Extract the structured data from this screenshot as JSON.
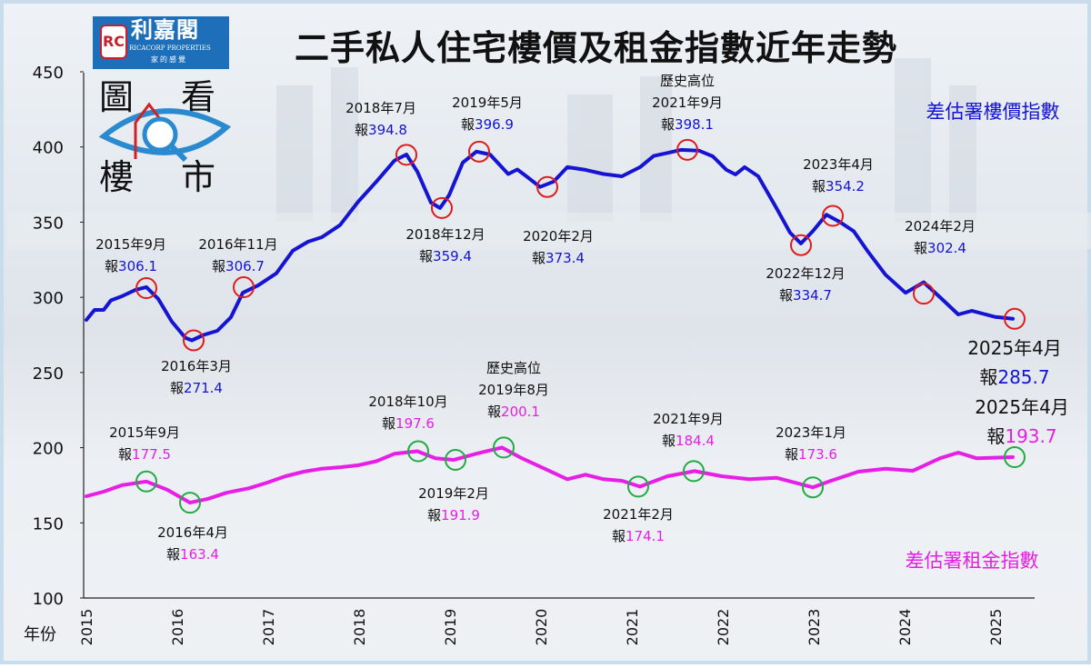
{
  "logo": {
    "name": "利嘉閣",
    "english": "RICACORP PROPERTIES",
    "slogan": "家的感覺",
    "mark": "RC",
    "badge_chars": [
      "圖",
      "看",
      "樓",
      "市"
    ]
  },
  "title": "二手私人住宅樓價及租金指數近年走勢",
  "colors": {
    "price": "#1414d2",
    "rent": "#e61ee6",
    "price_marker": "#e01b1b",
    "rent_marker": "#22aa44",
    "text": "#111111"
  },
  "chart_data": {
    "type": "line",
    "title": "二手私人住宅樓價及租金指數近年走勢",
    "xlabel": "年份",
    "ylabel": "",
    "xlim": [
      2015,
      2025.45
    ],
    "ylim": [
      100,
      450
    ],
    "x_ticks": [
      "2015",
      "2016",
      "2017",
      "2018",
      "2019",
      "2020",
      "2021",
      "2022",
      "2023",
      "2024",
      "2025"
    ],
    "y_ticks": [
      100,
      150,
      200,
      250,
      300,
      350,
      400,
      450
    ],
    "grid": false,
    "series": [
      {
        "name": "差估署樓價指數",
        "color": "#1414d2",
        "points": [
          [
            2015.0,
            285
          ],
          [
            2015.09,
            291.6
          ],
          [
            2015.19,
            291.6
          ],
          [
            2015.27,
            298
          ],
          [
            2015.39,
            300.7
          ],
          [
            2015.54,
            305
          ],
          [
            2015.66,
            306.8
          ],
          [
            2015.79,
            299
          ],
          [
            2015.94,
            283.8
          ],
          [
            2016.09,
            273
          ],
          [
            2016.16,
            271.4
          ],
          [
            2016.29,
            275
          ],
          [
            2016.44,
            277.7
          ],
          [
            2016.59,
            286.8
          ],
          [
            2016.72,
            303
          ],
          [
            2016.89,
            308
          ],
          [
            2017.09,
            316
          ],
          [
            2017.27,
            331
          ],
          [
            2017.44,
            337
          ],
          [
            2017.59,
            340
          ],
          [
            2017.79,
            348
          ],
          [
            2017.99,
            363.6
          ],
          [
            2018.19,
            377
          ],
          [
            2018.39,
            391
          ],
          [
            2018.52,
            395
          ],
          [
            2018.64,
            383.6
          ],
          [
            2018.79,
            363
          ],
          [
            2018.89,
            359.4
          ],
          [
            2018.99,
            368
          ],
          [
            2019.14,
            389.6
          ],
          [
            2019.29,
            396.9
          ],
          [
            2019.44,
            395
          ],
          [
            2019.64,
            382
          ],
          [
            2019.74,
            385
          ],
          [
            2019.84,
            380.5
          ],
          [
            2019.99,
            373.4
          ],
          [
            2020.14,
            377
          ],
          [
            2020.29,
            386.6
          ],
          [
            2020.49,
            384.8
          ],
          [
            2020.69,
            382
          ],
          [
            2020.89,
            380.5
          ],
          [
            2021.09,
            386.6
          ],
          [
            2021.24,
            394
          ],
          [
            2021.39,
            396
          ],
          [
            2021.54,
            398.1
          ],
          [
            2021.74,
            397.5
          ],
          [
            2021.89,
            393.8
          ],
          [
            2022.04,
            384.8
          ],
          [
            2022.14,
            381.7
          ],
          [
            2022.24,
            386.6
          ],
          [
            2022.39,
            380.5
          ],
          [
            2022.59,
            359.4
          ],
          [
            2022.74,
            343
          ],
          [
            2022.86,
            335.8
          ],
          [
            2022.99,
            344
          ],
          [
            2023.14,
            355
          ],
          [
            2023.29,
            350
          ],
          [
            2023.44,
            344
          ],
          [
            2023.59,
            331
          ],
          [
            2023.79,
            315
          ],
          [
            2024.01,
            303
          ],
          [
            2024.21,
            310
          ],
          [
            2024.39,
            300
          ],
          [
            2024.59,
            288.6
          ],
          [
            2024.74,
            291
          ],
          [
            2024.99,
            287
          ],
          [
            2025.19,
            285.7
          ]
        ],
        "annotations": [
          {
            "x": 2015.66,
            "value": 306.1,
            "lines": [
              "2015年9月"
            ],
            "prefix": "報",
            "text": "306.1"
          },
          {
            "x": 2016.18,
            "value": 271.4,
            "lines": [
              "2016年3月"
            ],
            "prefix": "報",
            "text": "271.4"
          },
          {
            "x": 2016.73,
            "value": 306.7,
            "lines": [
              "2016年11月"
            ],
            "prefix": "報",
            "text": "306.7"
          },
          {
            "x": 2018.52,
            "value": 394.8,
            "lines": [
              "2018年7月"
            ],
            "prefix": "報",
            "text": "394.8"
          },
          {
            "x": 2018.91,
            "value": 359.4,
            "lines": [
              "2018年12月"
            ],
            "prefix": "報",
            "text": "359.4"
          },
          {
            "x": 2019.32,
            "value": 396.9,
            "lines": [
              "2019年5月"
            ],
            "prefix": "報",
            "text": "396.9"
          },
          {
            "x": 2020.07,
            "value": 373.4,
            "lines": [
              "2020年2月"
            ],
            "prefix": "報",
            "text": "373.4"
          },
          {
            "x": 2021.61,
            "value": 398.1,
            "lines": [
              "歷史高位",
              "2021年9月"
            ],
            "prefix": "報",
            "text": "398.1"
          },
          {
            "x": 2022.86,
            "value": 334.7,
            "lines": [
              "2022年12月"
            ],
            "prefix": "報",
            "text": "334.7"
          },
          {
            "x": 2023.21,
            "value": 354.2,
            "lines": [
              "2023年4月"
            ],
            "prefix": "報",
            "text": "354.2"
          },
          {
            "x": 2024.21,
            "value": 302.4,
            "lines": [
              "2024年2月"
            ],
            "prefix": "報",
            "text": "302.4"
          },
          {
            "x": 2025.21,
            "value": 285.7,
            "lines": [
              "2025年4月"
            ],
            "prefix": "報",
            "text": "285.7"
          }
        ]
      },
      {
        "name": "差估署租金指數",
        "color": "#e61ee6",
        "points": [
          [
            2015.0,
            167.7
          ],
          [
            2015.19,
            170.7
          ],
          [
            2015.39,
            175
          ],
          [
            2015.66,
            177.5
          ],
          [
            2015.89,
            172
          ],
          [
            2016.14,
            163.4
          ],
          [
            2016.34,
            166
          ],
          [
            2016.54,
            170
          ],
          [
            2016.79,
            173
          ],
          [
            2016.99,
            176.8
          ],
          [
            2017.19,
            181
          ],
          [
            2017.39,
            184
          ],
          [
            2017.59,
            186
          ],
          [
            2017.79,
            187
          ],
          [
            2017.99,
            188.3
          ],
          [
            2018.19,
            191
          ],
          [
            2018.39,
            196
          ],
          [
            2018.64,
            197.6
          ],
          [
            2018.84,
            193
          ],
          [
            2019.04,
            191.9
          ],
          [
            2019.29,
            196
          ],
          [
            2019.57,
            200.1
          ],
          [
            2019.79,
            193
          ],
          [
            2020.04,
            186
          ],
          [
            2020.29,
            179
          ],
          [
            2020.49,
            182
          ],
          [
            2020.69,
            179
          ],
          [
            2020.89,
            178
          ],
          [
            2021.09,
            174.1
          ],
          [
            2021.39,
            181
          ],
          [
            2021.69,
            184.4
          ],
          [
            2021.99,
            181
          ],
          [
            2022.29,
            179
          ],
          [
            2022.59,
            180
          ],
          [
            2022.99,
            173.6
          ],
          [
            2023.19,
            178
          ],
          [
            2023.49,
            184
          ],
          [
            2023.79,
            186
          ],
          [
            2024.09,
            184.6
          ],
          [
            2024.39,
            193
          ],
          [
            2024.59,
            196.7
          ],
          [
            2024.79,
            193
          ],
          [
            2025.19,
            193.7
          ]
        ],
        "annotations": [
          {
            "x": 2015.66,
            "value": 177.5,
            "lines": [
              "2015年9月"
            ],
            "prefix": "報",
            "text": "177.5"
          },
          {
            "x": 2016.14,
            "value": 163.4,
            "lines": [
              "2016年4月"
            ],
            "prefix": "報",
            "text": "163.4"
          },
          {
            "x": 2018.65,
            "value": 197.6,
            "lines": [
              "2018年10月"
            ],
            "prefix": "報",
            "text": "197.6"
          },
          {
            "x": 2019.06,
            "value": 191.9,
            "lines": [
              "2019年2月"
            ],
            "prefix": "報",
            "text": "191.9"
          },
          {
            "x": 2019.59,
            "value": 200.1,
            "lines": [
              "歷史高位",
              "2019年8月"
            ],
            "prefix": "報",
            "text": "200.1"
          },
          {
            "x": 2021.07,
            "value": 174.1,
            "lines": [
              "2021年2月"
            ],
            "prefix": "報",
            "text": "174.1"
          },
          {
            "x": 2021.68,
            "value": 184.4,
            "lines": [
              "2021年9月"
            ],
            "prefix": "報",
            "text": "184.4"
          },
          {
            "x": 2022.99,
            "value": 173.6,
            "lines": [
              "2023年1月"
            ],
            "prefix": "報",
            "text": "173.6"
          },
          {
            "x": 2025.21,
            "value": 193.7,
            "lines": [
              "2025年4月"
            ],
            "prefix": "報",
            "text": "193.7"
          }
        ]
      }
    ]
  }
}
